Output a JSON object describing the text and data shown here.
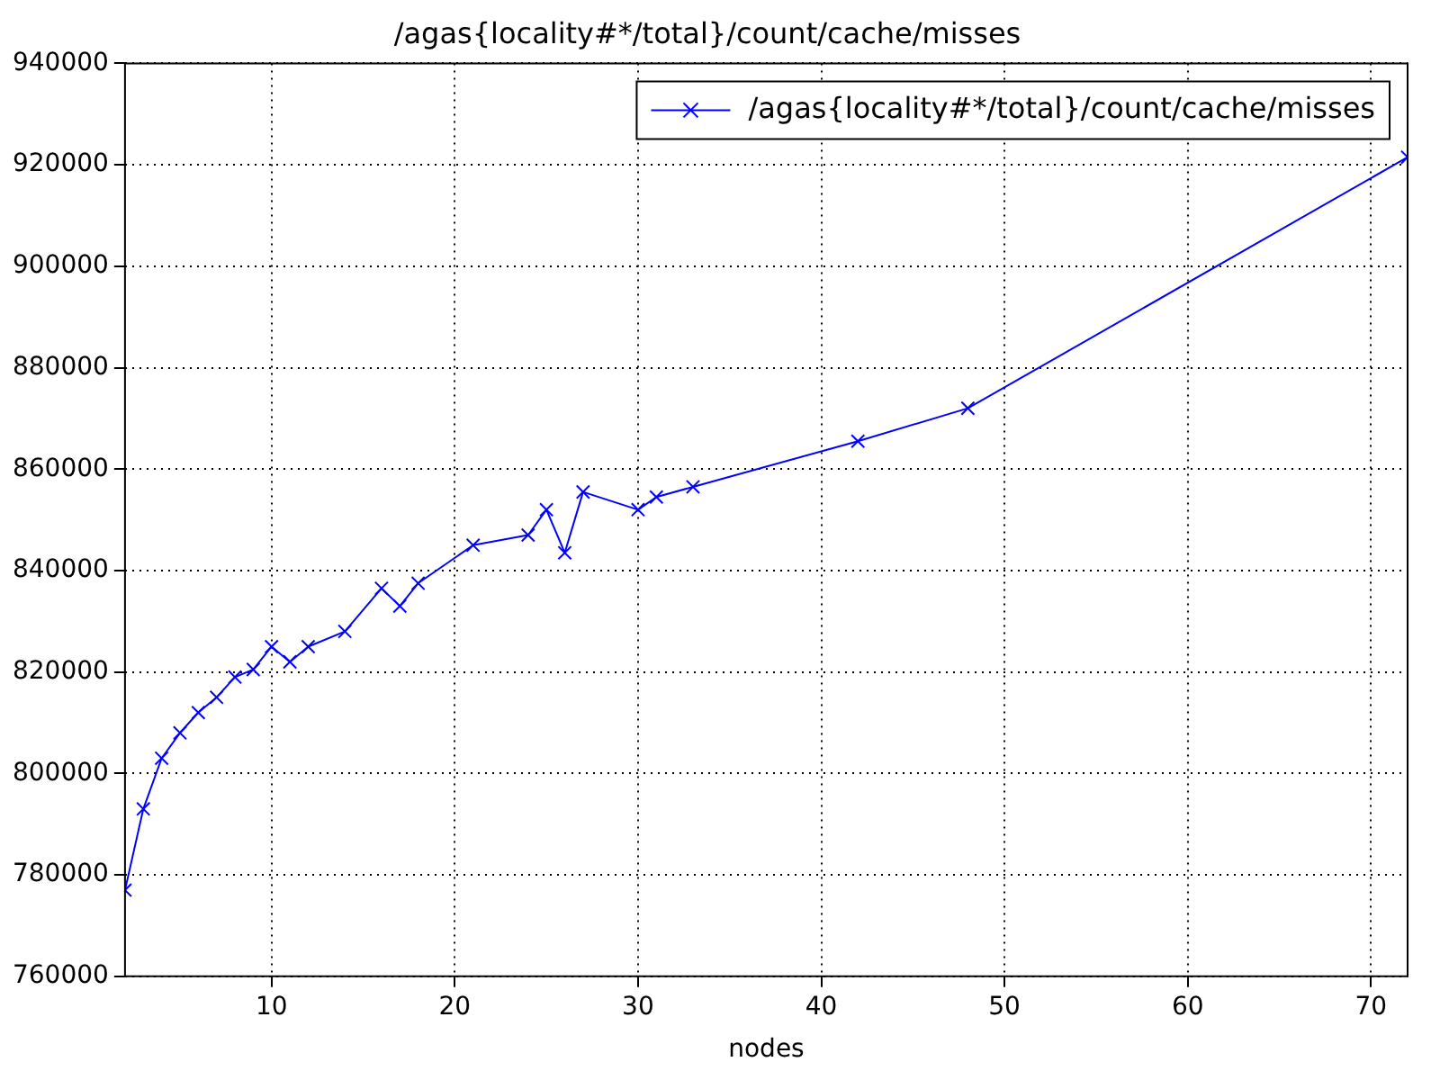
{
  "chart_data": {
    "type": "line",
    "title": "/agas{locality#*/total}/count/cache/misses",
    "xlabel": "nodes",
    "x": [
      2,
      3,
      4,
      5,
      6,
      7,
      8,
      9,
      10,
      11,
      12,
      14,
      16,
      17,
      18,
      21,
      24,
      25,
      26,
      27,
      30,
      31,
      33,
      42,
      48,
      72
    ],
    "series": [
      {
        "name": "/agas{locality#*/total}/count/cache/misses",
        "color": "#0000ff",
        "values": [
          777000,
          793000,
          803000,
          808000,
          812000,
          815000,
          819000,
          820500,
          825000,
          822000,
          825000,
          828000,
          836500,
          833000,
          837500,
          845000,
          847000,
          852000,
          843500,
          855500,
          852000,
          854500,
          856500,
          865500,
          872000,
          921500
        ]
      }
    ],
    "xlim": [
      2,
      72
    ],
    "xticks": [
      10,
      20,
      30,
      40,
      50,
      60,
      70
    ],
    "ylim": [
      760000,
      940000
    ],
    "yticks": [
      760000,
      780000,
      800000,
      820000,
      840000,
      860000,
      880000,
      900000,
      920000,
      940000
    ],
    "grid": true,
    "legend": "top right",
    "marker": "cross",
    "line_style": "solid"
  }
}
